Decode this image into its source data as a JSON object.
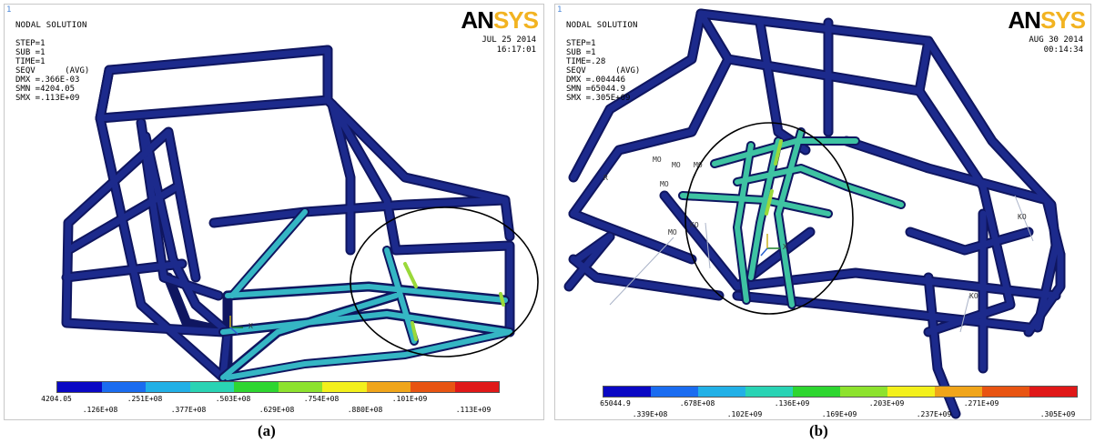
{
  "colors": {
    "frame": "#1c2a8c",
    "frame_stroke": "#0f1660",
    "stress_mid": "#35b6c4",
    "stress_high": "#3ec3a2",
    "hotspot": "#9ad93a",
    "logo_an": "#000000",
    "logo_sys": "#f2b321"
  },
  "legend_colors": [
    "#0a08c4",
    "#1a6cf0",
    "#22b0e6",
    "#29d3b4",
    "#2ed630",
    "#8de22e",
    "#f3f01c",
    "#f0a51a",
    "#e85412",
    "#e01818"
  ],
  "panel_a": {
    "index": "1",
    "title": "NODAL SOLUTION",
    "params": [
      "STEP=1",
      "SUB =1",
      "TIME=1",
      "SEQV      (AVG)",
      "DMX =.366E-03",
      "SMN =4204.05",
      "SMX =.113E+09"
    ],
    "logo": {
      "an": "AN",
      "sys": "SYS"
    },
    "date": "JUL 25 2014",
    "time": "16:17:01",
    "axis_label": "X",
    "top_ticks": [
      "4204.05",
      ".251E+08",
      ".503E+08",
      ".754E+08",
      ".101E+09"
    ],
    "bottom_ticks": [
      ".126E+08",
      ".377E+08",
      ".629E+08",
      ".880E+08",
      ".113E+09"
    ],
    "caption": "(a)"
  },
  "panel_b": {
    "index": "1",
    "title": "NODAL SOLUTION",
    "params": [
      "STEP=1",
      "SUB =1",
      "TIME=.28",
      "SEQV      (AVG)",
      "DMX =.004446",
      "SMN =65044.9",
      "SMX =.305E+09"
    ],
    "logo": {
      "an": "AN",
      "sys": "SYS"
    },
    "date": "AUG 30 2014",
    "time": "00:14:34",
    "axis_label": "X",
    "markers": [
      "R",
      "MO",
      "MO",
      "MO",
      "MO",
      "KO",
      "MO",
      "KO",
      "KO"
    ],
    "top_ticks": [
      "65044.9",
      ".678E+08",
      ".136E+09",
      ".203E+09",
      ".271E+09"
    ],
    "bottom_ticks": [
      ".339E+08",
      ".102E+09",
      ".169E+09",
      ".237E+09",
      ".305E+09"
    ],
    "caption": "(b)"
  }
}
